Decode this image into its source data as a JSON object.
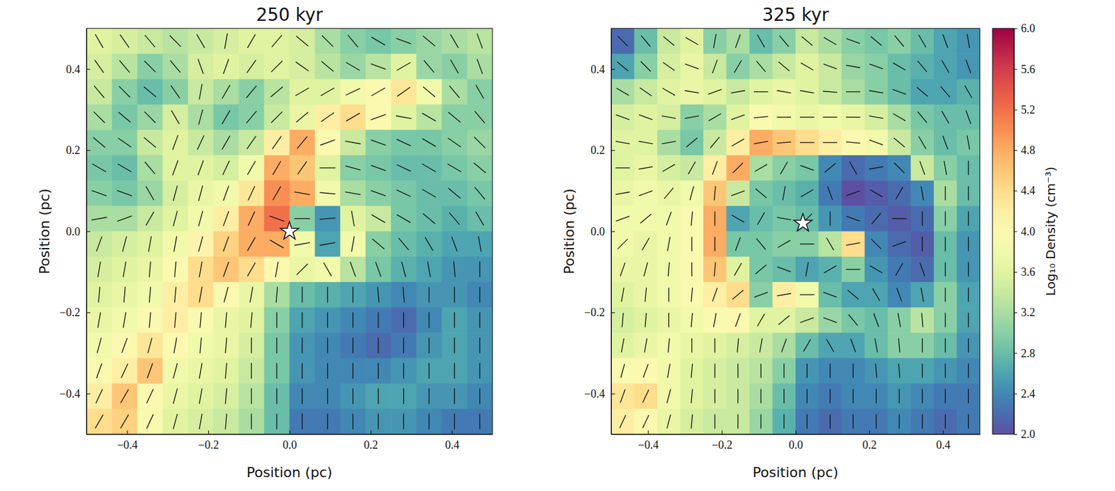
{
  "chart_data": [
    {
      "type": "heatmap",
      "title": "250 kyr",
      "xlabel": "Position (pc)",
      "ylabel": "Position (pc)",
      "xlim": [
        -0.5,
        0.5
      ],
      "ylim": [
        -0.5,
        0.5
      ],
      "zlim": [
        2,
        6
      ],
      "xticks": [
        {
          "value": -0.4,
          "label": "−0.4"
        },
        {
          "value": -0.2,
          "label": "−0.2"
        },
        {
          "value": 0,
          "label": "0.0"
        },
        {
          "value": 0.2,
          "label": "0.2"
        },
        {
          "value": 0.4,
          "label": "0.4"
        }
      ],
      "yticks": [
        {
          "value": -0.4,
          "label": "−0.4"
        },
        {
          "value": -0.2,
          "label": "−0.2"
        },
        {
          "value": 0,
          "label": "0.0"
        },
        {
          "value": 0.2,
          "label": "0.2"
        },
        {
          "value": 0.4,
          "label": "0.4"
        }
      ],
      "star": {
        "x": 0,
        "y": 0
      },
      "cells": [
        [
          3.6,
          3.5,
          3.4,
          3.3,
          3.4,
          3.5,
          3.6,
          3.6,
          3.5,
          3.2,
          3.0,
          2.9,
          3.0,
          3.1,
          3.2,
          3.3
        ],
        [
          3.5,
          3.3,
          3.0,
          3.2,
          3.5,
          3.6,
          3.5,
          3.6,
          3.5,
          3.3,
          3.1,
          3.3,
          3.6,
          3.1,
          3.0,
          3.2
        ],
        [
          3.4,
          3.0,
          2.8,
          3.0,
          3.4,
          3.2,
          3.0,
          3.3,
          3.6,
          3.6,
          3.8,
          4.0,
          4.3,
          3.8,
          3.2,
          3.0
        ],
        [
          3.2,
          2.9,
          3.1,
          3.5,
          3.2,
          2.9,
          3.0,
          3.4,
          3.7,
          4.2,
          4.4,
          4.0,
          3.6,
          3.3,
          3.0,
          3.0
        ],
        [
          3.0,
          3.0,
          3.4,
          3.6,
          3.4,
          3.2,
          3.4,
          4.2,
          4.8,
          4.0,
          3.4,
          3.0,
          2.9,
          2.9,
          3.0,
          3.1
        ],
        [
          2.9,
          2.8,
          3.2,
          3.6,
          3.6,
          3.5,
          3.8,
          4.8,
          4.6,
          3.6,
          3.0,
          2.9,
          2.8,
          2.8,
          2.9,
          3.0
        ],
        [
          3.0,
          2.9,
          3.1,
          3.5,
          3.7,
          3.8,
          4.3,
          5.0,
          4.8,
          3.8,
          3.2,
          3.0,
          2.9,
          2.8,
          2.8,
          2.9
        ],
        [
          3.2,
          3.2,
          3.4,
          3.6,
          3.8,
          4.2,
          4.8,
          5.2,
          3.0,
          2.5,
          3.6,
          3.4,
          2.9,
          2.8,
          2.7,
          2.8
        ],
        [
          3.4,
          3.5,
          3.6,
          3.8,
          4.1,
          4.5,
          4.8,
          4.8,
          3.8,
          2.6,
          3.8,
          3.0,
          2.8,
          2.7,
          2.6,
          2.6
        ],
        [
          3.5,
          3.6,
          3.7,
          4.0,
          4.4,
          4.6,
          4.4,
          4.0,
          3.7,
          3.8,
          3.3,
          2.9,
          2.7,
          2.6,
          2.5,
          2.5
        ],
        [
          3.6,
          3.7,
          3.8,
          4.2,
          4.4,
          4.0,
          3.7,
          3.2,
          2.8,
          2.7,
          2.6,
          2.5,
          2.4,
          2.5,
          2.5,
          2.4
        ],
        [
          3.7,
          3.8,
          4.0,
          4.2,
          3.9,
          3.7,
          3.6,
          3.0,
          2.6,
          2.5,
          2.4,
          2.3,
          2.2,
          2.4,
          2.6,
          2.5
        ],
        [
          3.8,
          4.0,
          4.3,
          4.0,
          3.8,
          3.7,
          3.5,
          2.9,
          2.5,
          2.4,
          2.3,
          2.2,
          2.3,
          2.5,
          2.6,
          2.5
        ],
        [
          3.9,
          4.2,
          4.6,
          3.8,
          3.7,
          3.6,
          3.4,
          2.9,
          2.5,
          2.4,
          2.4,
          2.4,
          2.5,
          2.6,
          2.6,
          2.5
        ],
        [
          4.2,
          4.6,
          4.0,
          3.7,
          3.6,
          3.5,
          3.3,
          2.8,
          2.4,
          2.4,
          2.5,
          2.6,
          2.6,
          2.5,
          2.5,
          2.4
        ],
        [
          4.4,
          4.5,
          3.9,
          3.6,
          3.5,
          3.4,
          3.2,
          2.8,
          2.3,
          2.3,
          2.4,
          2.5,
          2.5,
          2.4,
          2.3,
          2.3
        ]
      ],
      "field_angles": [
        [
          -60,
          -55,
          -50,
          -45,
          -60,
          80,
          60,
          50,
          -40,
          -45,
          -50,
          -30,
          -20,
          -40,
          -60,
          -70
        ],
        [
          -55,
          -50,
          -45,
          -50,
          -70,
          70,
          55,
          45,
          -35,
          -40,
          -30,
          -20,
          30,
          -50,
          -60,
          -70
        ],
        [
          -50,
          -45,
          -40,
          -55,
          80,
          60,
          50,
          40,
          30,
          30,
          25,
          30,
          35,
          -40,
          -50,
          -60
        ],
        [
          -45,
          -40,
          -45,
          -60,
          75,
          60,
          50,
          45,
          40,
          35,
          30,
          20,
          -10,
          -30,
          -40,
          -50
        ],
        [
          -40,
          -35,
          -40,
          70,
          65,
          60,
          55,
          55,
          50,
          20,
          -10,
          -20,
          -25,
          -30,
          -35,
          -45
        ],
        [
          -30,
          -30,
          -50,
          70,
          70,
          65,
          60,
          60,
          55,
          0,
          -15,
          -20,
          -25,
          -30,
          -30,
          -40
        ],
        [
          -20,
          -20,
          -60,
          75,
          75,
          70,
          65,
          60,
          -10,
          -5,
          -10,
          -20,
          -25,
          -30,
          -40,
          -50
        ],
        [
          10,
          20,
          60,
          75,
          75,
          70,
          65,
          -20,
          0,
          5,
          -80,
          -30,
          -30,
          -40,
          -50,
          -60
        ],
        [
          70,
          75,
          80,
          80,
          75,
          70,
          60,
          -30,
          10,
          10,
          80,
          -40,
          -50,
          -60,
          -70,
          -80
        ],
        [
          80,
          80,
          85,
          85,
          80,
          70,
          60,
          80,
          45,
          -60,
          -70,
          -70,
          -75,
          -80,
          -85,
          90
        ],
        [
          85,
          85,
          85,
          85,
          80,
          75,
          80,
          85,
          90,
          90,
          90,
          -85,
          -85,
          90,
          90,
          90
        ],
        [
          80,
          80,
          85,
          85,
          85,
          85,
          85,
          90,
          90,
          90,
          90,
          90,
          90,
          90,
          90,
          90
        ],
        [
          75,
          70,
          75,
          80,
          85,
          85,
          90,
          90,
          90,
          90,
          90,
          90,
          90,
          90,
          90,
          90
        ],
        [
          70,
          65,
          70,
          75,
          80,
          85,
          90,
          90,
          90,
          90,
          90,
          90,
          90,
          90,
          90,
          90
        ],
        [
          65,
          60,
          65,
          75,
          80,
          85,
          90,
          90,
          90,
          90,
          90,
          90,
          90,
          90,
          90,
          90
        ],
        [
          60,
          60,
          65,
          75,
          80,
          85,
          90,
          90,
          90,
          90,
          90,
          90,
          90,
          90,
          90,
          90
        ]
      ]
    },
    {
      "type": "heatmap",
      "title": "325 kyr",
      "xlabel": "Position (pc)",
      "ylabel": "Position (pc)",
      "xlim": [
        -0.5,
        0.5
      ],
      "ylim": [
        -0.5,
        0.5
      ],
      "zlim": [
        2,
        6
      ],
      "xticks": [
        {
          "value": -0.4,
          "label": "−0.4"
        },
        {
          "value": -0.2,
          "label": "−0.2"
        },
        {
          "value": 0,
          "label": "0.0"
        },
        {
          "value": 0.2,
          "label": "0.2"
        },
        {
          "value": 0.4,
          "label": "0.4"
        }
      ],
      "yticks": [
        {
          "value": -0.4,
          "label": "−0.4"
        },
        {
          "value": -0.2,
          "label": "−0.2"
        },
        {
          "value": 0,
          "label": "0.0"
        },
        {
          "value": 0.2,
          "label": "0.2"
        },
        {
          "value": 0.4,
          "label": "0.4"
        }
      ],
      "star": {
        "x": 0.02,
        "y": 0.02
      },
      "colorbar": {
        "label": "Log₁₀ Density (cm⁻³)",
        "range": [
          2,
          6
        ],
        "ticks": [
          {
            "value": 2,
            "label": "2.0"
          },
          {
            "value": 2.4,
            "label": "2.4"
          },
          {
            "value": 2.8,
            "label": "2.8"
          },
          {
            "value": 3.2,
            "label": "3.2"
          },
          {
            "value": 3.6,
            "label": "3.6"
          },
          {
            "value": 4,
            "label": "4.0"
          },
          {
            "value": 4.4,
            "label": "4.4"
          },
          {
            "value": 4.8,
            "label": "4.8"
          },
          {
            "value": 5.2,
            "label": "5.2"
          },
          {
            "value": 5.6,
            "label": "5.6"
          },
          {
            "value": 6,
            "label": "6.0"
          }
        ]
      },
      "cells": [
        [
          2.2,
          2.8,
          3.4,
          3.6,
          3.0,
          3.2,
          2.8,
          3.0,
          3.4,
          3.2,
          3.0,
          2.9,
          3.0,
          2.8,
          2.6,
          2.5
        ],
        [
          2.6,
          3.0,
          3.5,
          3.7,
          3.4,
          3.0,
          3.2,
          3.4,
          3.6,
          3.4,
          3.1,
          3.0,
          2.8,
          2.7,
          2.6,
          2.5
        ],
        [
          3.2,
          3.4,
          3.6,
          3.7,
          3.6,
          3.4,
          3.6,
          3.7,
          3.6,
          3.4,
          3.2,
          3.0,
          2.8,
          2.6,
          2.6,
          2.7
        ],
        [
          3.5,
          3.6,
          3.5,
          3.0,
          3.2,
          3.6,
          3.9,
          3.8,
          3.7,
          3.8,
          3.7,
          3.5,
          3.2,
          2.9,
          2.8,
          2.8
        ],
        [
          3.6,
          3.6,
          3.2,
          2.9,
          3.4,
          4.2,
          4.8,
          4.6,
          4.4,
          4.2,
          4.0,
          3.8,
          3.4,
          3.0,
          2.8,
          2.9
        ],
        [
          3.6,
          3.7,
          3.5,
          3.4,
          4.2,
          4.8,
          3.2,
          3.0,
          2.9,
          2.4,
          2.2,
          2.3,
          2.4,
          3.4,
          3.0,
          2.8
        ],
        [
          3.7,
          3.8,
          3.7,
          3.8,
          4.6,
          3.4,
          2.9,
          2.8,
          2.7,
          2.3,
          2.0,
          2.1,
          2.2,
          2.4,
          3.2,
          2.8
        ],
        [
          3.8,
          3.8,
          3.8,
          3.9,
          4.8,
          2.6,
          2.8,
          2.9,
          2.8,
          2.5,
          2.3,
          2.2,
          2.1,
          2.2,
          3.0,
          2.6
        ],
        [
          3.8,
          3.7,
          3.8,
          3.9,
          4.8,
          2.9,
          2.9,
          3.0,
          3.0,
          3.3,
          4.4,
          2.4,
          2.2,
          2.1,
          2.8,
          2.5
        ],
        [
          3.7,
          3.7,
          3.8,
          4.0,
          4.6,
          3.6,
          2.9,
          2.8,
          2.6,
          2.7,
          3.0,
          2.5,
          2.3,
          2.2,
          2.8,
          2.5
        ],
        [
          3.6,
          3.7,
          3.8,
          3.9,
          4.2,
          4.4,
          3.0,
          4.2,
          3.8,
          2.8,
          2.6,
          2.6,
          2.4,
          2.6,
          3.0,
          2.6
        ],
        [
          3.5,
          3.6,
          3.7,
          3.8,
          3.9,
          4.0,
          3.6,
          3.6,
          3.4,
          3.1,
          2.9,
          2.8,
          3.0,
          3.3,
          3.0,
          2.6
        ],
        [
          3.6,
          3.7,
          3.8,
          3.7,
          3.6,
          3.5,
          3.4,
          3.2,
          2.8,
          2.6,
          2.6,
          2.8,
          3.0,
          3.0,
          2.8,
          2.5
        ],
        [
          3.9,
          4.0,
          3.8,
          3.6,
          3.5,
          3.4,
          3.3,
          3.0,
          2.5,
          2.4,
          2.4,
          2.5,
          2.6,
          2.6,
          2.5,
          2.4
        ],
        [
          4.3,
          4.4,
          3.8,
          3.6,
          3.5,
          3.4,
          3.2,
          2.8,
          2.4,
          2.3,
          2.4,
          2.4,
          2.5,
          2.4,
          2.3,
          2.3
        ],
        [
          4.2,
          4.0,
          3.7,
          3.5,
          3.4,
          3.4,
          3.1,
          2.7,
          2.3,
          2.2,
          2.3,
          2.3,
          2.4,
          2.3,
          2.2,
          2.3
        ]
      ],
      "field_angles": [
        [
          -45,
          -50,
          -40,
          -30,
          80,
          70,
          -60,
          -50,
          -40,
          -30,
          -20,
          -40,
          -50,
          -60,
          -70,
          -80
        ],
        [
          -40,
          -45,
          -35,
          -20,
          70,
          60,
          -50,
          -40,
          -30,
          -20,
          -10,
          -20,
          -30,
          -50,
          -60,
          -70
        ],
        [
          -30,
          -35,
          -30,
          -10,
          20,
          10,
          0,
          -10,
          -10,
          -5,
          0,
          -10,
          -20,
          -40,
          -50,
          -60
        ],
        [
          -20,
          -20,
          -10,
          10,
          30,
          20,
          5,
          0,
          0,
          0,
          0,
          -10,
          -30,
          -50,
          -60,
          -70
        ],
        [
          -10,
          -10,
          10,
          40,
          50,
          30,
          10,
          5,
          0,
          0,
          -5,
          -20,
          -40,
          -60,
          -70,
          -80
        ],
        [
          0,
          10,
          30,
          60,
          70,
          45,
          30,
          60,
          -20,
          40,
          -60,
          10,
          -45,
          -70,
          -80,
          90
        ],
        [
          10,
          20,
          50,
          75,
          85,
          20,
          -40,
          80,
          30,
          -70,
          20,
          -30,
          60,
          -80,
          90,
          90
        ],
        [
          20,
          40,
          70,
          85,
          90,
          -30,
          60,
          -10,
          45,
          90,
          -20,
          50,
          0,
          90,
          90,
          90
        ],
        [
          45,
          60,
          80,
          90,
          90,
          70,
          -50,
          30,
          0,
          -60,
          10,
          -45,
          20,
          90,
          90,
          90
        ],
        [
          70,
          75,
          85,
          90,
          85,
          60,
          40,
          -20,
          80,
          30,
          0,
          -30,
          60,
          -70,
          90,
          90
        ],
        [
          80,
          85,
          90,
          85,
          70,
          40,
          20,
          10,
          0,
          -20,
          -40,
          -60,
          -70,
          -80,
          90,
          90
        ],
        [
          85,
          85,
          90,
          85,
          80,
          70,
          60,
          40,
          20,
          -20,
          -50,
          -70,
          -80,
          -85,
          90,
          90
        ],
        [
          80,
          80,
          85,
          90,
          90,
          85,
          80,
          70,
          60,
          -60,
          -70,
          -80,
          -85,
          90,
          90,
          90
        ],
        [
          75,
          70,
          80,
          85,
          90,
          90,
          90,
          90,
          90,
          90,
          90,
          -85,
          -85,
          90,
          90,
          90
        ],
        [
          70,
          65,
          75,
          85,
          90,
          90,
          90,
          90,
          90,
          90,
          90,
          90,
          90,
          90,
          90,
          90
        ],
        [
          65,
          65,
          75,
          85,
          90,
          90,
          90,
          90,
          90,
          90,
          90,
          90,
          90,
          90,
          90,
          90
        ]
      ]
    }
  ]
}
